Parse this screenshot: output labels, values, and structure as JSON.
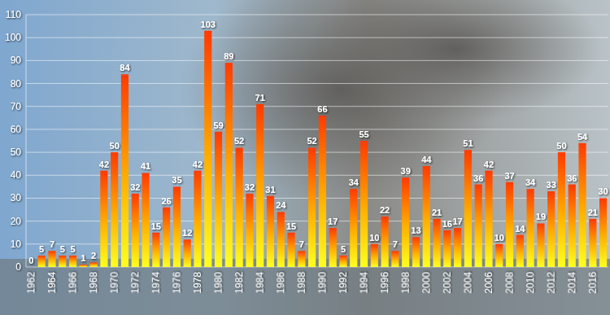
{
  "chart_data": {
    "type": "bar",
    "categories": [
      "1962",
      null,
      "1964",
      null,
      "1966",
      null,
      "1968",
      null,
      "1970",
      null,
      "1972",
      null,
      "1974",
      null,
      "1976",
      null,
      "1978",
      null,
      "1980",
      null,
      "1982",
      null,
      "1984",
      null,
      "1986",
      null,
      "1988",
      null,
      "1990",
      null,
      "1992",
      null,
      "1994",
      null,
      "1996",
      null,
      "1998",
      null,
      "2000",
      null,
      "2002",
      null,
      "2004",
      null,
      "2006",
      null,
      "2008",
      null,
      "2010",
      null,
      "2012",
      null,
      "2014",
      null,
      "2016",
      null
    ],
    "values": [
      0,
      5,
      7,
      5,
      5,
      1,
      2,
      42,
      50,
      84,
      32,
      41,
      15,
      26,
      35,
      12,
      42,
      103,
      59,
      89,
      52,
      32,
      71,
      31,
      24,
      15,
      7,
      52,
      66,
      17,
      5,
      34,
      55,
      10,
      22,
      7,
      39,
      13,
      44,
      21,
      16,
      17,
      51,
      36,
      42,
      10,
      37,
      14,
      34,
      19,
      33,
      50,
      36,
      54,
      21,
      30
    ],
    "color": "#ff3a00",
    "ylim": [
      0,
      110
    ],
    "yticks": [
      0,
      10,
      20,
      30,
      40,
      50,
      60,
      70,
      80,
      90,
      100,
      110
    ],
    "grid": true,
    "data_labels": true
  }
}
